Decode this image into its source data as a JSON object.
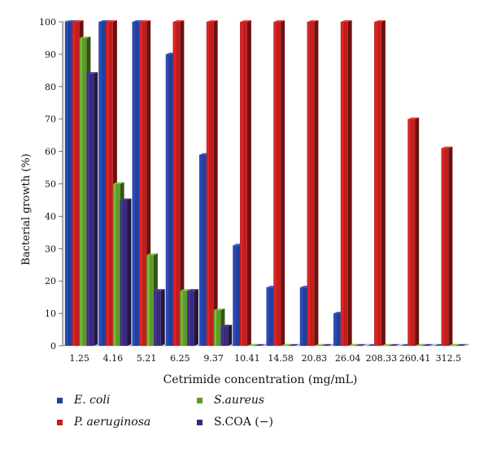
{
  "chart_data": {
    "type": "bar",
    "title": "",
    "xlabel": "Cetrimide concentration (mg/mL)",
    "ylabel": "Bacterial growth (%)",
    "ylim": [
      0,
      100
    ],
    "yticks": [
      "0",
      "10",
      "20",
      "30",
      "40",
      "50",
      "60",
      "70",
      "80",
      "90",
      "100"
    ],
    "categories": [
      "1.25",
      "4.16",
      "5.21",
      "6.25",
      "9.37",
      "10.41",
      "14.58",
      "20.83",
      "26.04",
      "208.33",
      "260.41",
      "312.5"
    ],
    "series": [
      {
        "name": "E. coli",
        "color": "#233f9c",
        "values": [
          100,
          100,
          100,
          90,
          59,
          31,
          18,
          18,
          10,
          0,
          0,
          0
        ]
      },
      {
        "name": "P. aeruginosa",
        "color": "#c21e1e",
        "values": [
          100,
          100,
          100,
          100,
          100,
          100,
          100,
          100,
          100,
          100,
          70,
          61
        ]
      },
      {
        "name": "S.aureus",
        "color": "#5f9a2c",
        "values": [
          95,
          50,
          28,
          17,
          11,
          0,
          0,
          0,
          0,
          0,
          0,
          0
        ]
      },
      {
        "name": "S.COA (−)",
        "color": "#3b2a7a",
        "values": [
          84,
          45,
          17,
          17,
          6,
          0,
          0,
          0,
          0,
          0,
          0,
          0
        ]
      }
    ],
    "legend": {
      "position": "bottom-left",
      "items": [
        {
          "label": "E. coli",
          "color": "#233f9c",
          "italic": true
        },
        {
          "label": "S.aureus",
          "color": "#5f9a2c",
          "italic": true
        },
        {
          "label": "P. aeruginosa",
          "color": "#c21e1e",
          "italic": true
        },
        {
          "label": "S.COA (−)",
          "color": "#3b2a7a",
          "italic": false
        }
      ]
    }
  }
}
